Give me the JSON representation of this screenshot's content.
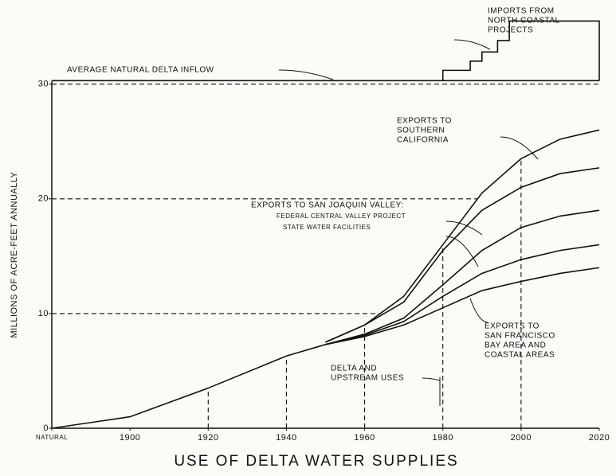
{
  "chart_data": {
    "type": "line",
    "title": "USE OF DELTA WATER SUPPLIES",
    "y_label": "MILLIONS OF ACRE-FEET ANNUALLY",
    "x": [
      1880,
      1900,
      1920,
      1940,
      1950,
      1960,
      1970,
      1980,
      1990,
      2000,
      2010,
      2020
    ],
    "xlim": [
      1880,
      2020
    ],
    "xticks": [
      {
        "value": 1880,
        "label": "NATURAL"
      },
      1900,
      1920,
      1940,
      1960,
      1980,
      2000,
      2020
    ],
    "ylim": [
      0,
      36.5
    ],
    "yticks": [
      0,
      10,
      20,
      30
    ],
    "series": [
      {
        "color": "#111111",
        "values": [
          0,
          1,
          3.5,
          6.3,
          7.3,
          8,
          9,
          10.5,
          12,
          12.8,
          13.5,
          14
        ]
      },
      {
        "color": "#111111",
        "values": [
          null,
          null,
          null,
          null,
          7.3,
          8.1,
          9.3,
          11.5,
          13.5,
          14.7,
          15.5,
          16
        ]
      },
      {
        "color": "#111111",
        "values": [
          null,
          null,
          null,
          null,
          7.3,
          8.2,
          9.6,
          12.5,
          15.5,
          17.5,
          18.5,
          19
        ]
      },
      {
        "color": "#111111",
        "values": [
          null,
          null,
          null,
          null,
          7.5,
          9,
          11,
          15.5,
          19,
          21,
          22.2,
          22.7
        ]
      },
      {
        "color": "#111111",
        "values": [
          null,
          null,
          null,
          null,
          7.5,
          9,
          11.5,
          16,
          20.5,
          23.5,
          25.2,
          26
        ]
      },
      {
        "color": "#111111",
        "values": [
          30.3,
          30.3,
          30.3,
          30.3,
          30.3,
          30.3,
          30.3,
          30.3,
          30.3,
          30.3,
          30.3,
          30.3
        ]
      },
      {
        "color": "#111111",
        "x": [
          1980,
          1980,
          1987,
          1987,
          1990,
          1990,
          1994,
          1994,
          1997,
          1997,
          2020,
          2020
        ],
        "values": [
          30.3,
          31.2,
          31.2,
          32,
          32,
          32.8,
          32.8,
          33.8,
          33.8,
          35.5,
          35.5,
          30.3
        ]
      }
    ],
    "annotations": [
      [
        "IMPORTS FROM",
        "NORTH COASTAL",
        "PROJECTS"
      ],
      [
        "AVERAGE NATURAL DELTA INFLOW"
      ],
      [
        "EXPORTS TO",
        "SOUTHERN",
        "CALIFORNIA"
      ],
      [
        "EXPORTS TO SAN JOAQUIN VALLEY:",
        "FEDERAL CENTRAL VALLEY PROJECT",
        "STATE WATER FACILITIES"
      ],
      [
        "EXPORTS TO",
        "SAN FRANCISCO",
        "BAY AREA AND",
        "COASTAL AREAS"
      ],
      [
        "DELTA AND",
        "UPSTREAM USES"
      ]
    ]
  }
}
